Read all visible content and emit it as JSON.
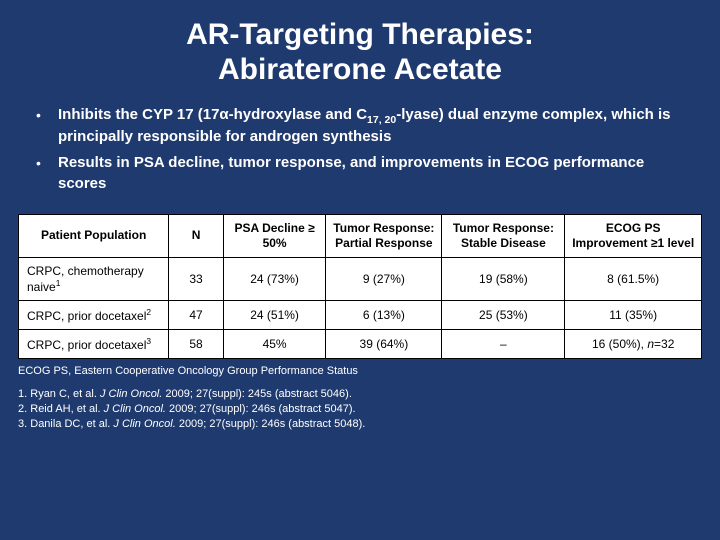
{
  "title_line1": "AR-Targeting Therapies:",
  "title_line2": "Abiraterone Acetate",
  "bullets": [
    {
      "pre": "Inhibits the CYP 17 (17α-hydroxylase and C",
      "sub": "17, 20",
      "post": "-lyase) dual enzyme complex, which is principally responsible for androgen synthesis"
    },
    {
      "pre": "Results in PSA decline, tumor response, and improvements in ECOG performance scores",
      "sub": "",
      "post": ""
    }
  ],
  "table": {
    "headers": [
      "Patient Population",
      "N",
      "PSA Decline ≥ 50%",
      "Tumor Response: Partial Response",
      "Tumor Response: Stable Disease",
      "ECOG PS Improvement ≥1 level"
    ],
    "rows": [
      {
        "label": "CRPC, chemotherapy naive",
        "sup": "1",
        "cells": [
          "33",
          "24 (73%)",
          "9 (27%)",
          "19 (58%)",
          "8 (61.5%)"
        ]
      },
      {
        "label": "CRPC, prior docetaxel",
        "sup": "2",
        "cells": [
          "47",
          "24 (51%)",
          "6 (13%)",
          "25 (53%)",
          "11 (35%)"
        ]
      },
      {
        "label": "CRPC, prior docetaxel",
        "sup": "3",
        "cells": [
          "58",
          "45%",
          "39 (64%)",
          "–",
          "16 (50%), n=32"
        ],
        "n_italic": true
      }
    ]
  },
  "footnote": "ECOG PS, Eastern Cooperative Oncology Group Performance Status",
  "refs": [
    {
      "num": "1.",
      "auth": "Ryan C, et al. ",
      "journal": "J Clin Oncol.",
      "rest": " 2009; 27(suppl): 245s (abstract 5046)."
    },
    {
      "num": "2.",
      "auth": "Reid AH, et al. ",
      "journal": "J Clin Oncol.",
      "rest": " 2009; 27(suppl): 246s (abstract 5047)."
    },
    {
      "num": "3.",
      "auth": "Danila DC, et al. ",
      "journal": "J Clin Oncol.",
      "rest": " 2009; 27(suppl): 246s (abstract 5048)."
    }
  ],
  "colors": {
    "background": "#1f3a6e",
    "text": "#ffffff",
    "table_bg": "#ffffff",
    "table_text": "#000000",
    "table_border": "#000000"
  }
}
